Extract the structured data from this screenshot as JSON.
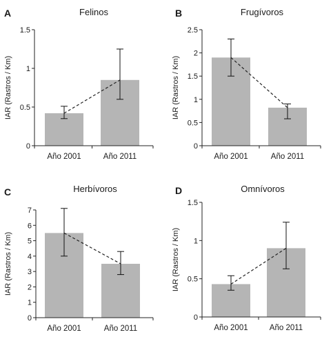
{
  "chart_data": [
    {
      "type": "bar",
      "panel": "A",
      "title": "Felinos",
      "ylabel": "IAR (Rastros / Km)",
      "categories": [
        "Año 2001",
        "Año 2011"
      ],
      "values": [
        0.42,
        0.85
      ],
      "error_low": [
        0.35,
        0.6
      ],
      "error_high": [
        0.51,
        1.25
      ],
      "ylim": [
        0,
        1.5
      ],
      "yticks": [
        "0",
        "0.5",
        "1",
        "1.5"
      ],
      "ytick_values": [
        0,
        0.5,
        1,
        1.5
      ],
      "trend_line": "dashed",
      "bar_color": "#b5b5b5"
    },
    {
      "type": "bar",
      "panel": "B",
      "title": "Frugívoros",
      "ylabel": "IAR (Rastros / Km)",
      "categories": [
        "Año 2001",
        "Año 2011"
      ],
      "values": [
        1.9,
        0.82
      ],
      "error_low": [
        1.5,
        0.58
      ],
      "error_high": [
        2.3,
        0.9
      ],
      "ylim": [
        0,
        2.5
      ],
      "yticks": [
        "0",
        "0.5",
        "1",
        "1.5",
        "2",
        "2.5"
      ],
      "ytick_values": [
        0,
        0.5,
        1,
        1.5,
        2,
        2.5
      ],
      "trend_line": "dashed",
      "bar_color": "#b5b5b5"
    },
    {
      "type": "bar",
      "panel": "C",
      "title": "Herbívoros",
      "ylabel": "IAR (Rastros / Km)",
      "categories": [
        "Año 2001",
        "Año 2011"
      ],
      "values": [
        5.5,
        3.5
      ],
      "error_low": [
        4.0,
        2.8
      ],
      "error_high": [
        7.1,
        4.3
      ],
      "ylim": [
        0,
        7
      ],
      "yticks": [
        "0",
        "1",
        "2",
        "3",
        "4",
        "5",
        "6",
        "7"
      ],
      "ytick_values": [
        0,
        1,
        2,
        3,
        4,
        5,
        6,
        7
      ],
      "trend_line": "dashed",
      "bar_color": "#b5b5b5"
    },
    {
      "type": "bar",
      "panel": "D",
      "title": "Omnívoros",
      "ylabel": "IAR (Rastros / Km)",
      "categories": [
        "Año 2001",
        "Año 2011"
      ],
      "values": [
        0.43,
        0.9
      ],
      "error_low": [
        0.35,
        0.63
      ],
      "error_high": [
        0.54,
        1.24
      ],
      "ylim": [
        0,
        1.5
      ],
      "yticks": [
        "0",
        "0.5",
        "1",
        "1.5"
      ],
      "ytick_values": [
        0,
        0.5,
        1,
        1.5
      ],
      "trend_line": "dashed",
      "bar_color": "#b5b5b5"
    }
  ]
}
